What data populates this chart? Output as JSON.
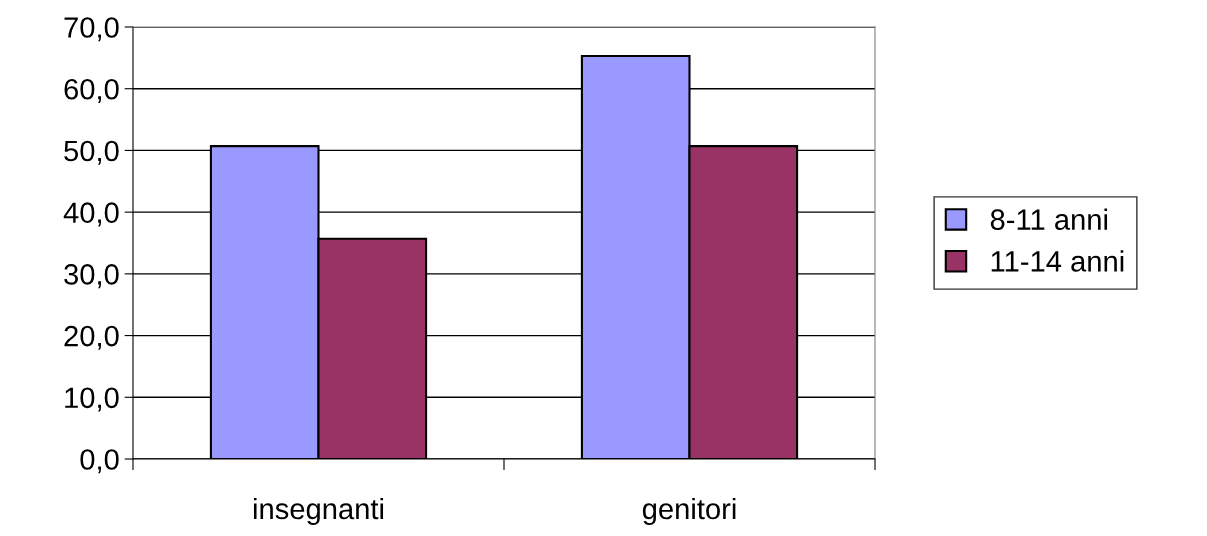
{
  "chart_data": {
    "type": "bar",
    "categories": [
      "insegnanti",
      "genitori"
    ],
    "series": [
      {
        "name": "8-11 anni",
        "color": "#9999ff",
        "values": [
          50.7,
          65.3
        ]
      },
      {
        "name": "11-14 anni",
        "color": "#993366",
        "values": [
          35.7,
          50.7
        ]
      }
    ],
    "ylim": [
      0,
      70
    ],
    "yticks": [
      {
        "value": 0,
        "label": "0,0"
      },
      {
        "value": 10,
        "label": "10,0"
      },
      {
        "value": 20,
        "label": "20,0"
      },
      {
        "value": 30,
        "label": "30,0"
      },
      {
        "value": 40,
        "label": "40,0"
      },
      {
        "value": 50,
        "label": "50,0"
      },
      {
        "value": 60,
        "label": "60,0"
      },
      {
        "value": 70,
        "label": "70,0"
      }
    ],
    "grid": "y",
    "legend": "right"
  }
}
